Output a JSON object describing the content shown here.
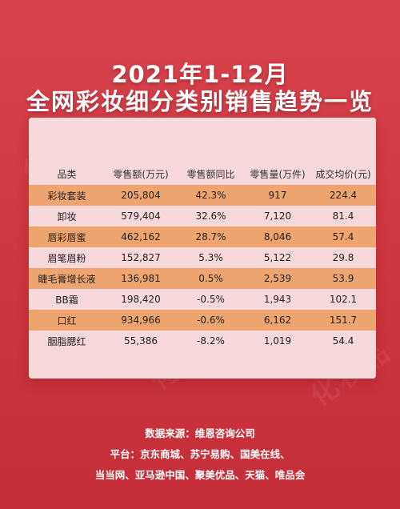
{
  "title": {
    "line1": "2021年1-12月",
    "line2": "全网彩妆细分类别销售趋势一览"
  },
  "watermark": "化妆品",
  "table": {
    "headers": [
      "品类",
      "零售额(万元)",
      "零售额同比",
      "零售量(万件)",
      "成交均价(元)"
    ],
    "rows": [
      [
        "彩妆套装",
        "205,804",
        "42.3%",
        "917",
        "224.4"
      ],
      [
        "卸妆",
        "579,404",
        "32.6%",
        "7,120",
        "81.4"
      ],
      [
        "唇彩唇蜜",
        "462,162",
        "28.7%",
        "8,046",
        "57.4"
      ],
      [
        "眉笔眉粉",
        "152,827",
        "5.3%",
        "5,122",
        "29.8"
      ],
      [
        "睫毛膏增长液",
        "136,981",
        "0.5%",
        "2,539",
        "53.9"
      ],
      [
        "BB霜",
        "198,420",
        "-0.5%",
        "1,943",
        "102.1"
      ],
      [
        "口红",
        "934,966",
        "-0.6%",
        "6,162",
        "151.7"
      ],
      [
        "胭脂腮红",
        "55,386",
        "-8.2%",
        "1,019",
        "54.4"
      ]
    ]
  },
  "footer": {
    "source": "数据来源：维恩咨询公司",
    "platform": "平台：京东商城、苏宁易购、国美在线、",
    "platform2": "当当网、亚马逊中国、聚美优品、天猫、唯品会"
  },
  "colors": {
    "background": "#cf3840",
    "card": "#f7d9dc",
    "row_highlight": "#eea46f"
  }
}
